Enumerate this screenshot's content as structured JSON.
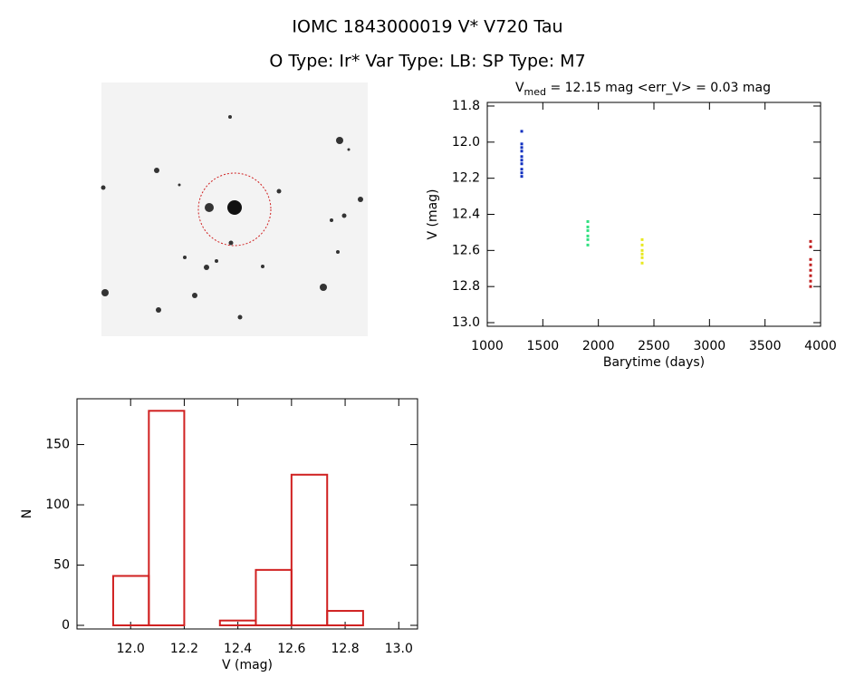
{
  "title": "IOMC 1843000019    V* V720 Tau",
  "subtitle": "O Type: Ir*  Var Type: LB:  SP Type: M7",
  "chart_data": [
    {
      "type": "scatter",
      "title": [
        "V",
        "med",
        " = 12.15 mag <err_V> = 0.03 mag"
      ],
      "x_label": "Barytime (days)",
      "y_label": "V (mag)",
      "xlim": [
        1000,
        4000
      ],
      "xticks": [
        1000,
        1500,
        2000,
        2500,
        3000,
        3500,
        4000
      ],
      "ylim": [
        13.02,
        11.78
      ],
      "yticks": [
        {
          "value": 13.0,
          "label": "13.0"
        },
        12.8,
        12.6,
        12.4,
        12.2,
        {
          "value": 12.0,
          "label": "12.0"
        },
        11.8
      ],
      "series": [
        {
          "color": "#1030c0",
          "x": [
            1310,
            1310,
            1310,
            1310,
            1310,
            1310,
            1310,
            1310,
            1310,
            1310
          ],
          "values": [
            11.94,
            12.01,
            12.03,
            12.05,
            12.08,
            12.1,
            12.12,
            12.15,
            12.17,
            12.19
          ]
        },
        {
          "color": "#30e080",
          "x": [
            1905,
            1905,
            1905,
            1905,
            1905,
            1905
          ],
          "values": [
            12.44,
            12.47,
            12.49,
            12.52,
            12.54,
            12.57
          ]
        },
        {
          "color": "#e8e820",
          "x": [
            2394,
            2394,
            2394,
            2394,
            2394,
            2394
          ],
          "values": [
            12.54,
            12.57,
            12.6,
            12.62,
            12.64,
            12.67
          ]
        },
        {
          "color": "#c02020",
          "x": [
            3910,
            3910,
            3910,
            3910,
            3910,
            3910,
            3910,
            3910
          ],
          "values": [
            12.55,
            12.58,
            12.65,
            12.68,
            12.71,
            12.74,
            12.77,
            12.8
          ]
        }
      ]
    },
    {
      "type": "histogram",
      "x_label": "V (mag)",
      "y_label": "N",
      "color": "#d02020",
      "bins": [
        11.935,
        12.068,
        12.2,
        12.333,
        12.467,
        12.6,
        12.733,
        12.867
      ],
      "values": [
        41,
        178,
        0,
        4,
        46,
        125,
        12
      ],
      "xlim": [
        11.8,
        13.07
      ],
      "xticks": [
        {
          "value": 12.0,
          "label": "12.0"
        },
        12.2,
        12.4,
        12.6,
        12.8,
        {
          "value": 13.0,
          "label": "13.0"
        }
      ],
      "ylim": [
        -3,
        188
      ],
      "yticks": [
        0,
        50,
        100,
        150
      ]
    }
  ]
}
